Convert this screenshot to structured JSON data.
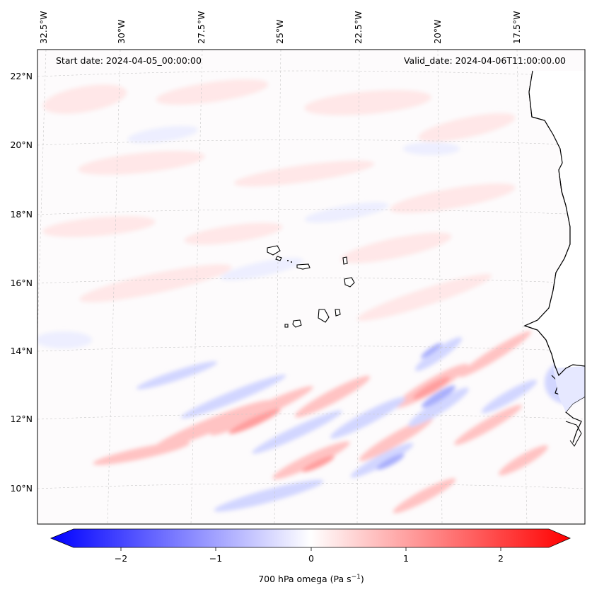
{
  "map": {
    "start_date": "Start date: 2024-04-05_00:00:00",
    "valid_date": "Valid_date: 2024-04-06T11:00:00.00",
    "top_labels": [
      "32.5°W",
      "30°W",
      "27.5°W",
      "25°W",
      "22.5°W",
      "20°W",
      "17.5°W"
    ],
    "left_labels": [
      "22°N",
      "20°N",
      "18°N",
      "16°N",
      "14°N",
      "12°N",
      "10°N"
    ],
    "colors": {
      "positive": "#ff0000",
      "negative": "#0000ff",
      "neutral": "#ffffff",
      "coast": "#000000",
      "grid": "#c8c8c8"
    }
  },
  "colorbar": {
    "label": "700 hPa omega (Pa s",
    "label_sup": "−1",
    "label_end": ")",
    "ticks": [
      "−2",
      "−1",
      "0",
      "1",
      "2"
    ],
    "range": [
      -2.6,
      2.6
    ]
  }
}
